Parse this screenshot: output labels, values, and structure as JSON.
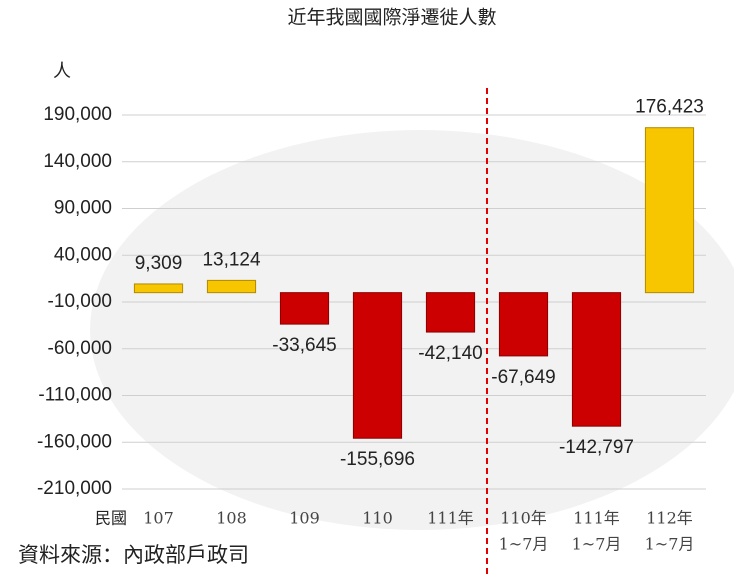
{
  "chart_data": {
    "type": "bar",
    "title": "近年我國國際淨遷徙人數",
    "y_unit_label": "人",
    "x_prefix_label": "民國",
    "source": "資料來源：內政部戶政司",
    "categories": [
      [
        "107"
      ],
      [
        "108"
      ],
      [
        "109"
      ],
      [
        "110"
      ],
      [
        "111年"
      ],
      [
        "110年",
        "1~7月"
      ],
      [
        "111年",
        "1~7月"
      ],
      [
        "112年",
        "1~7月"
      ]
    ],
    "values": [
      9309,
      13124,
      -33645,
      -155696,
      -42140,
      -67649,
      -142797,
      176423
    ],
    "value_labels": [
      "9,309",
      "13,124",
      "-33,645",
      "-155,696",
      "-42,140",
      "-67,649",
      "-142,797",
      "176,423"
    ],
    "colors": {
      "positive": "#f7c600",
      "negative": "#cc0000"
    },
    "ylim": [
      -210000,
      190000
    ],
    "yticks": [
      {
        "value": -210000,
        "label": "-210,000"
      },
      {
        "value": -160000,
        "label": "-160,000"
      },
      {
        "value": -110000,
        "label": "-110,000"
      },
      {
        "value": -60000,
        "label": "-60,000"
      },
      {
        "value": -10000,
        "label": "-10,000"
      },
      {
        "value": 40000,
        "label": "40,000"
      },
      {
        "value": 90000,
        "label": "90,000"
      },
      {
        "value": 140000,
        "label": "140,000"
      },
      {
        "value": 190000,
        "label": "190,000"
      }
    ],
    "grid": true
  }
}
